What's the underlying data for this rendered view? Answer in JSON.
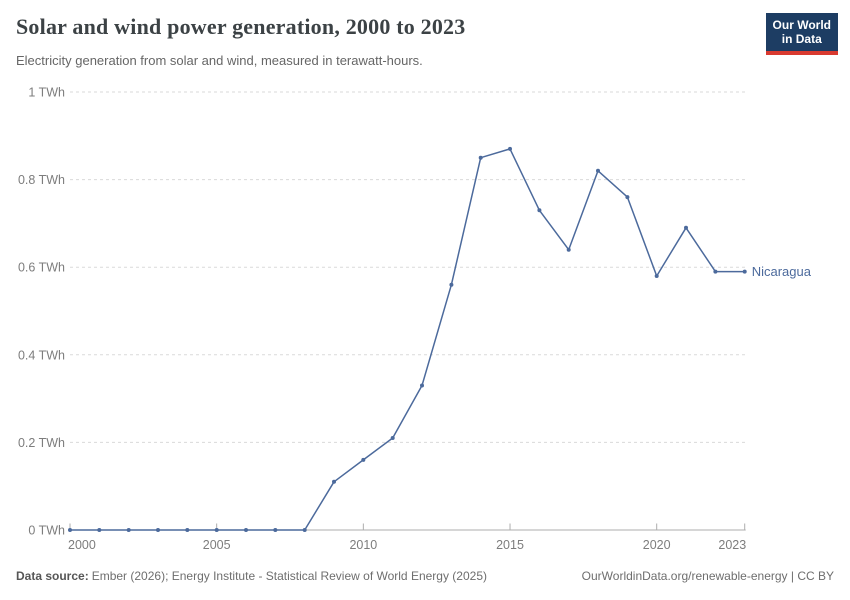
{
  "header": {
    "title": "Solar and wind power generation, 2000 to 2023",
    "subtitle": "Electricity generation from solar and wind, measured in terawatt-hours.",
    "logo_line1": "Our World",
    "logo_line2": "in Data"
  },
  "chart_data": {
    "type": "line",
    "title": "Solar and wind power generation, 2000 to 2023",
    "ylabel": "terawatt-hours",
    "xlim": [
      2000,
      2023
    ],
    "ylim": [
      0,
      1
    ],
    "grid": "horizontal-dashed",
    "legend_position": "line-end-label",
    "x_ticks": [
      2000,
      2005,
      2010,
      2015,
      2020,
      2023
    ],
    "y_ticks": [
      {
        "value": 0,
        "label": "0 TWh"
      },
      {
        "value": 0.2,
        "label": "0.2 TWh"
      },
      {
        "value": 0.4,
        "label": "0.4 TWh"
      },
      {
        "value": 0.6,
        "label": "0.6 TWh"
      },
      {
        "value": 0.8,
        "label": "0.8 TWh"
      },
      {
        "value": 1,
        "label": "1 TWh"
      }
    ],
    "series": [
      {
        "name": "Nicaragua",
        "color": "#4c6a9c",
        "x": [
          2000,
          2001,
          2002,
          2003,
          2004,
          2005,
          2006,
          2007,
          2008,
          2009,
          2010,
          2011,
          2012,
          2013,
          2014,
          2015,
          2016,
          2017,
          2018,
          2019,
          2020,
          2021,
          2022,
          2023
        ],
        "values": [
          0,
          0,
          0,
          0,
          0,
          0,
          0,
          0,
          0,
          0.11,
          0.16,
          0.21,
          0.33,
          0.56,
          0.85,
          0.87,
          0.73,
          0.64,
          0.82,
          0.76,
          0.58,
          0.69,
          0.59,
          0.59
        ]
      }
    ]
  },
  "footer": {
    "source_label": "Data source:",
    "source_text": "Ember (2026); Energy Institute - Statistical Review of World Energy (2025)",
    "right_text": "OurWorldinData.org/renewable-energy | CC BY"
  },
  "colors": {
    "line": "#4c6a9c",
    "gridline": "#dadada",
    "axis": "#adadad",
    "logo_bg": "#1d3d63",
    "logo_bar": "#d93a30"
  }
}
